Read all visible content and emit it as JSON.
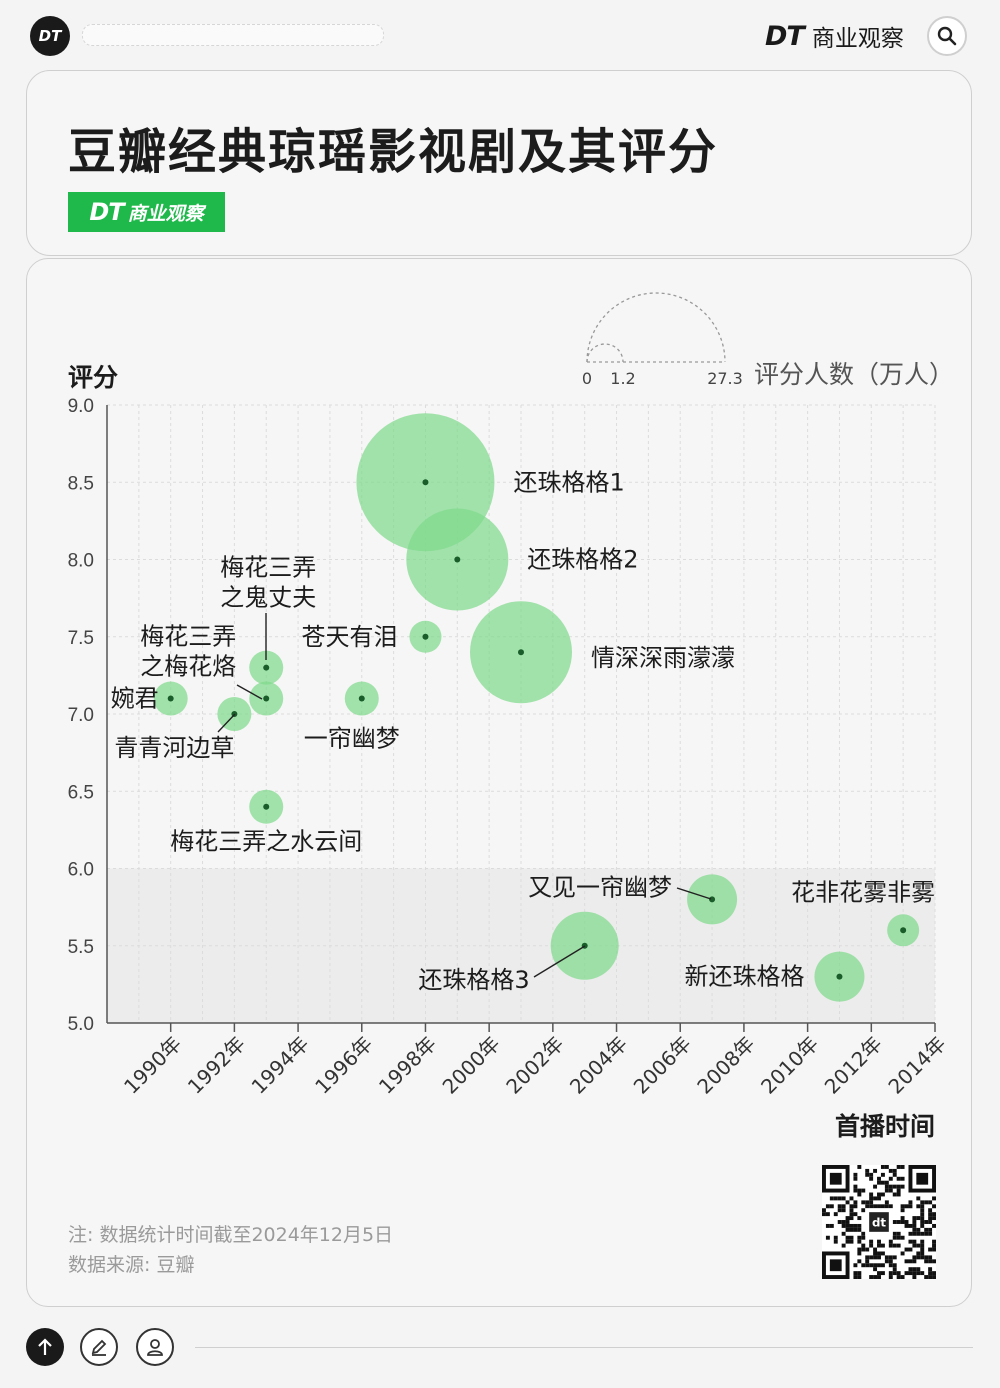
{
  "top_bar": {
    "logo_text": "DT",
    "brand_latin": "DT",
    "brand_cn": "商业观察",
    "search_icon": "search-icon"
  },
  "header": {
    "title": "豆瓣经典琼瑶影视剧及其评分",
    "badge_latin": "DT",
    "badge_cn": "商业观察",
    "badge_color": "#1fb84a"
  },
  "chart_data": {
    "type": "bubble",
    "ylabel": "评分",
    "xlabel": "首播时间",
    "ylim": [
      5.0,
      9.0
    ],
    "yticks": [
      "9.0",
      "8.5",
      "8.0",
      "7.5",
      "7.0",
      "6.5",
      "6.0",
      "5.5",
      "5.0"
    ],
    "xlim": [
      1988,
      2014
    ],
    "xticks": [
      "1990年",
      "1992年",
      "1994年",
      "1996年",
      "1998年",
      "2000年",
      "2002年",
      "2004年",
      "2006年",
      "2008年",
      "2010年",
      "2012年",
      "2014年"
    ],
    "grid": true,
    "shaded_band_below": 6.0,
    "bubble_color": "#7fd98c",
    "size_legend": {
      "title": "评分人数（万人）",
      "labels": [
        "0",
        "1.2",
        "27.3"
      ],
      "values": [
        0,
        1.2,
        27.3
      ]
    },
    "points": [
      {
        "name": "还珠格格1",
        "year": 1998,
        "rating": 8.5
      },
      {
        "name": "还珠格格2",
        "year": 1999,
        "rating": 8.0
      },
      {
        "name": "情深深雨濛濛",
        "year": 2001,
        "rating": 7.4
      },
      {
        "name": "苍天有泪",
        "year": 1998,
        "rating": 7.5
      },
      {
        "name": "一帘幽梦",
        "year": 1996,
        "rating": 7.1
      },
      {
        "name": "梅花三弄之鬼丈夫",
        "year": 1993,
        "rating": 7.3
      },
      {
        "name": "梅花三弄之梅花烙",
        "year": 1993,
        "rating": 7.1
      },
      {
        "name": "婉君",
        "year": 1990,
        "rating": 7.1
      },
      {
        "name": "青青河边草",
        "year": 1992,
        "rating": 7.0
      },
      {
        "name": "梅花三弄之水云间",
        "year": 1993,
        "rating": 6.4
      },
      {
        "name": "又见一帘幽梦",
        "year": 2007,
        "rating": 5.8
      },
      {
        "name": "还珠格格3",
        "year": 2003,
        "rating": 5.5
      },
      {
        "name": "新还珠格格",
        "year": 2011,
        "rating": 5.3
      },
      {
        "name": "花非花雾非雾",
        "year": 2013,
        "rating": 5.6
      }
    ],
    "point_label_lines": {
      "梅花三弄之鬼丈夫": [
        "梅花三弄",
        "之鬼丈夫"
      ],
      "梅花三弄之梅花烙": [
        "梅花三弄",
        "之梅花烙"
      ]
    }
  },
  "notes": {
    "note": "注: 数据统计时间截至2024年12月5日",
    "source": "数据来源: 豆瓣"
  },
  "qr": {
    "center_text": "dt"
  }
}
